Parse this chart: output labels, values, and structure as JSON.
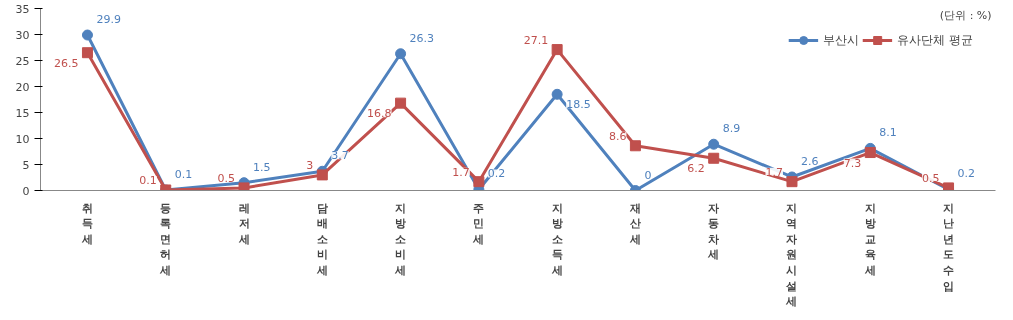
{
  "chart_data": {
    "type": "line",
    "categories": [
      "취득세",
      "등록면허세",
      "레저세",
      "담배소비세",
      "지방소비세",
      "주민세",
      "지방소득세",
      "재산세",
      "자동차세",
      "지역자원시설세",
      "지방교육세",
      "지난년도수입"
    ],
    "series": [
      {
        "name": "부산시",
        "color": "#4f81bd",
        "marker": "circle",
        "values": [
          29.9,
          0.1,
          1.5,
          3.7,
          26.3,
          0.2,
          18.5,
          0,
          8.9,
          2.6,
          8.1,
          0.2
        ]
      },
      {
        "name": "유사단체 평균",
        "color": "#c0504d",
        "marker": "square",
        "values": [
          26.5,
          0.1,
          0.5,
          3,
          16.8,
          1.7,
          27.1,
          8.6,
          6.2,
          1.7,
          7.3,
          0.5
        ]
      }
    ],
    "ylim": [
      0,
      35
    ],
    "yticks": [
      0,
      5,
      10,
      15,
      20,
      25,
      30,
      35
    ],
    "grid": false,
    "legend": "top right",
    "data_labels": true,
    "annotations": [
      "(단위 : %)"
    ]
  }
}
